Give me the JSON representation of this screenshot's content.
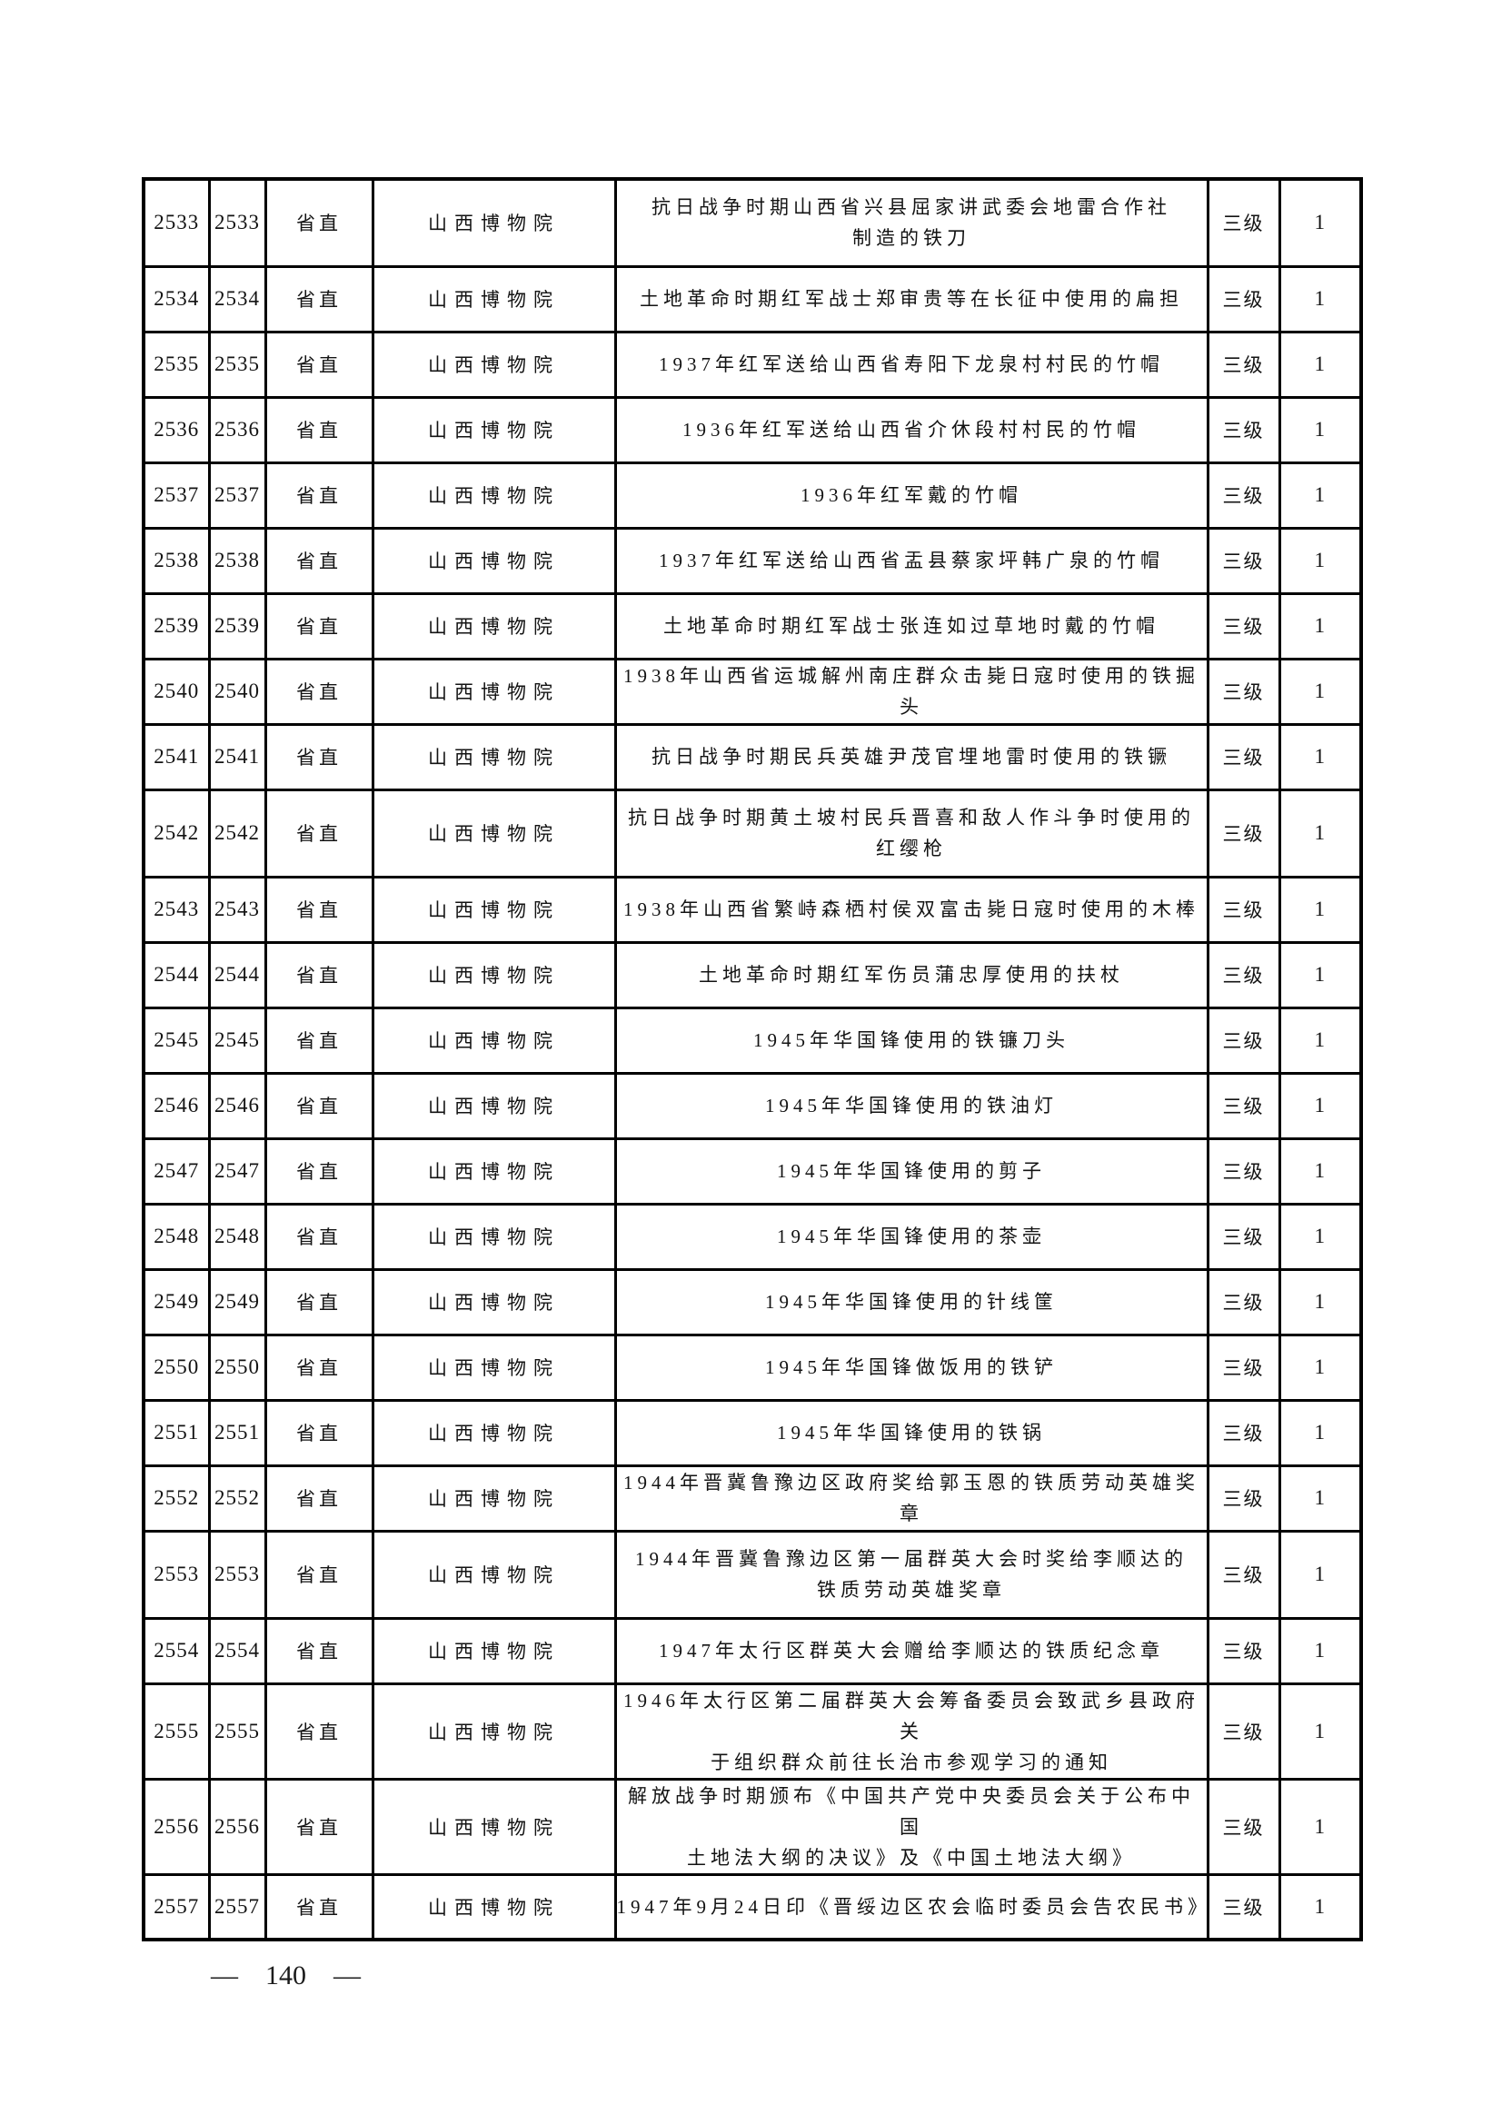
{
  "document": {
    "footer": {
      "left_dash": "—",
      "page_number": "140",
      "right_dash": "—"
    }
  },
  "table": {
    "constant_columns": {
      "region": "省直",
      "museum": "山西博物院",
      "grade": "三级",
      "count": "1"
    },
    "rows": [
      {
        "seq1": "2533",
        "seq2": "2533",
        "region": "省直",
        "museum": "山西博物院",
        "name": "抗日战争时期山西省兴县屈家讲武委会地雷合作社\n制造的铁刀",
        "grade": "三级",
        "count": "1"
      },
      {
        "seq1": "2534",
        "seq2": "2534",
        "region": "省直",
        "museum": "山西博物院",
        "name": "土地革命时期红军战士郑审贵等在长征中使用的扁担",
        "grade": "三级",
        "count": "1"
      },
      {
        "seq1": "2535",
        "seq2": "2535",
        "region": "省直",
        "museum": "山西博物院",
        "name": "1937年红军送给山西省寿阳下龙泉村村民的竹帽",
        "grade": "三级",
        "count": "1"
      },
      {
        "seq1": "2536",
        "seq2": "2536",
        "region": "省直",
        "museum": "山西博物院",
        "name": "1936年红军送给山西省介休段村村民的竹帽",
        "grade": "三级",
        "count": "1"
      },
      {
        "seq1": "2537",
        "seq2": "2537",
        "region": "省直",
        "museum": "山西博物院",
        "name": "1936年红军戴的竹帽",
        "grade": "三级",
        "count": "1"
      },
      {
        "seq1": "2538",
        "seq2": "2538",
        "region": "省直",
        "museum": "山西博物院",
        "name": "1937年红军送给山西省盂县蔡家坪韩广泉的竹帽",
        "grade": "三级",
        "count": "1"
      },
      {
        "seq1": "2539",
        "seq2": "2539",
        "region": "省直",
        "museum": "山西博物院",
        "name": "土地革命时期红军战士张连如过草地时戴的竹帽",
        "grade": "三级",
        "count": "1"
      },
      {
        "seq1": "2540",
        "seq2": "2540",
        "region": "省直",
        "museum": "山西博物院",
        "name": "1938年山西省运城解州南庄群众击毙日寇时使用的铁掘头",
        "grade": "三级",
        "count": "1"
      },
      {
        "seq1": "2541",
        "seq2": "2541",
        "region": "省直",
        "museum": "山西博物院",
        "name": "抗日战争时期民兵英雄尹茂官埋地雷时使用的铁镢",
        "grade": "三级",
        "count": "1"
      },
      {
        "seq1": "2542",
        "seq2": "2542",
        "region": "省直",
        "museum": "山西博物院",
        "name": "抗日战争时期黄土坡村民兵晋喜和敌人作斗争时使用的\n红缨枪",
        "grade": "三级",
        "count": "1"
      },
      {
        "seq1": "2543",
        "seq2": "2543",
        "region": "省直",
        "museum": "山西博物院",
        "name": "1938年山西省繁峙森栖村侯双富击毙日寇时使用的木棒",
        "grade": "三级",
        "count": "1"
      },
      {
        "seq1": "2544",
        "seq2": "2544",
        "region": "省直",
        "museum": "山西博物院",
        "name": "土地革命时期红军伤员蒲忠厚使用的扶杖",
        "grade": "三级",
        "count": "1"
      },
      {
        "seq1": "2545",
        "seq2": "2545",
        "region": "省直",
        "museum": "山西博物院",
        "name": "1945年华国锋使用的铁镰刀头",
        "grade": "三级",
        "count": "1"
      },
      {
        "seq1": "2546",
        "seq2": "2546",
        "region": "省直",
        "museum": "山西博物院",
        "name": "1945年华国锋使用的铁油灯",
        "grade": "三级",
        "count": "1"
      },
      {
        "seq1": "2547",
        "seq2": "2547",
        "region": "省直",
        "museum": "山西博物院",
        "name": "1945年华国锋使用的剪子",
        "grade": "三级",
        "count": "1"
      },
      {
        "seq1": "2548",
        "seq2": "2548",
        "region": "省直",
        "museum": "山西博物院",
        "name": "1945年华国锋使用的茶壶",
        "grade": "三级",
        "count": "1"
      },
      {
        "seq1": "2549",
        "seq2": "2549",
        "region": "省直",
        "museum": "山西博物院",
        "name": "1945年华国锋使用的针线筐",
        "grade": "三级",
        "count": "1"
      },
      {
        "seq1": "2550",
        "seq2": "2550",
        "region": "省直",
        "museum": "山西博物院",
        "name": "1945年华国锋做饭用的铁铲",
        "grade": "三级",
        "count": "1"
      },
      {
        "seq1": "2551",
        "seq2": "2551",
        "region": "省直",
        "museum": "山西博物院",
        "name": "1945年华国锋使用的铁锅",
        "grade": "三级",
        "count": "1"
      },
      {
        "seq1": "2552",
        "seq2": "2552",
        "region": "省直",
        "museum": "山西博物院",
        "name": "1944年晋冀鲁豫边区政府奖给郭玉恩的铁质劳动英雄奖章",
        "grade": "三级",
        "count": "1"
      },
      {
        "seq1": "2553",
        "seq2": "2553",
        "region": "省直",
        "museum": "山西博物院",
        "name": "1944年晋冀鲁豫边区第一届群英大会时奖给李顺达的\n铁质劳动英雄奖章",
        "grade": "三级",
        "count": "1"
      },
      {
        "seq1": "2554",
        "seq2": "2554",
        "region": "省直",
        "museum": "山西博物院",
        "name": "1947年太行区群英大会赠给李顺达的铁质纪念章",
        "grade": "三级",
        "count": "1"
      },
      {
        "seq1": "2555",
        "seq2": "2555",
        "region": "省直",
        "museum": "山西博物院",
        "name": "1946年太行区第二届群英大会筹备委员会致武乡县政府关\n于组织群众前往长治市参观学习的通知",
        "grade": "三级",
        "count": "1"
      },
      {
        "seq1": "2556",
        "seq2": "2556",
        "region": "省直",
        "museum": "山西博物院",
        "name": "解放战争时期颁布《中国共产党中央委员会关于公布中国\n土地法大纲的决议》及《中国土地法大纲》",
        "grade": "三级",
        "count": "1"
      },
      {
        "seq1": "2557",
        "seq2": "2557",
        "region": "省直",
        "museum": "山西博物院",
        "name": "1947年9月24日印《晋绥边区农会临时委员会告农民书》",
        "grade": "三级",
        "count": "1"
      }
    ]
  }
}
